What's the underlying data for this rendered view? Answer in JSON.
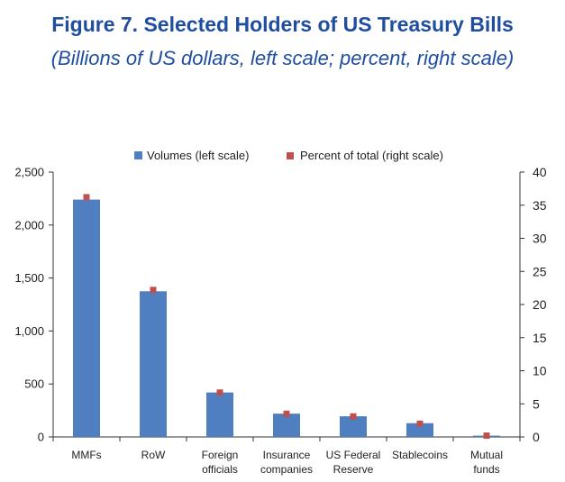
{
  "title": "Figure 7. Selected Holders of US Treasury Bills",
  "subtitle": "(Billions of US dollars, left scale; percent, right scale)",
  "chart_data": {
    "type": "bar",
    "categories": [
      [
        "MMFs"
      ],
      [
        "RoW"
      ],
      [
        "Foreign",
        "officials"
      ],
      [
        "Insurance",
        "companies"
      ],
      [
        "US Federal",
        "Reserve"
      ],
      [
        "Stablecoins"
      ],
      [
        "Mutual",
        "funds"
      ]
    ],
    "series": [
      {
        "name": "Volumes (left scale)",
        "axis": "left",
        "kind": "bar",
        "color": "#4f7fc0",
        "values": [
          2240,
          1375,
          420,
          220,
          195,
          130,
          12
        ]
      },
      {
        "name": "Percent of total (right scale)",
        "axis": "right",
        "kind": "marker",
        "color": "#c0504d",
        "values": [
          36.2,
          22.2,
          6.7,
          3.5,
          3.1,
          2.0,
          0.2
        ]
      }
    ],
    "y_left": {
      "min": 0,
      "max": 2500,
      "ticks": [
        0,
        500,
        1000,
        1500,
        2000,
        2500
      ],
      "tick_labels": [
        "0",
        "500",
        "1,000",
        "1,500",
        "2,000",
        "2,500"
      ]
    },
    "y_right": {
      "min": 0,
      "max": 40,
      "ticks": [
        0,
        5,
        10,
        15,
        20,
        25,
        30,
        35,
        40
      ],
      "tick_labels": [
        "0",
        "5",
        "10",
        "15",
        "20",
        "25",
        "30",
        "35",
        "40"
      ]
    },
    "legend_position": "top-center",
    "grid": false
  }
}
